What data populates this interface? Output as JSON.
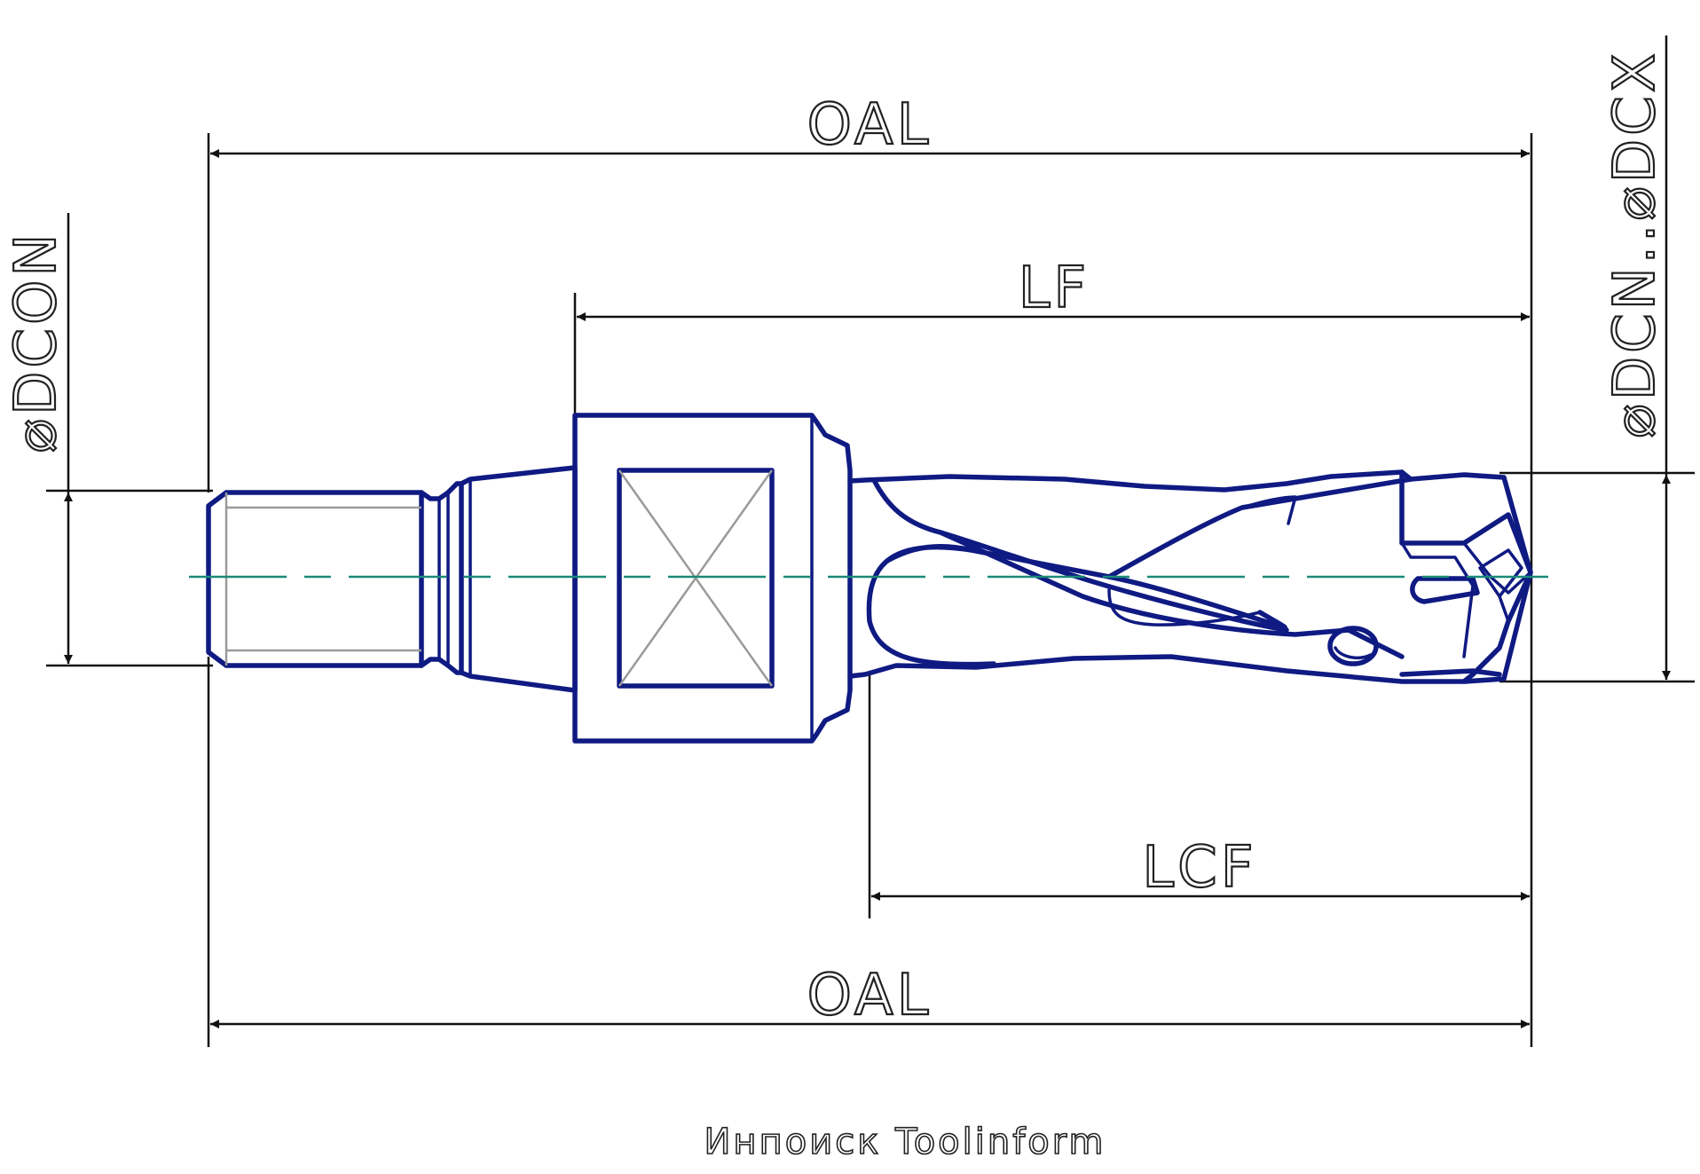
{
  "dimensions": {
    "oal_top": "OAL",
    "lf": "LF",
    "lcf": "LCF",
    "oal_bottom": "OAL",
    "dcon": "⌀DCON",
    "dcn_dcx": "⌀DCN..⌀DCX"
  },
  "footer": "Инпоиск Toolinform",
  "colors": {
    "tool_outline": "#0f1a82",
    "dimension_lines": "#111111",
    "center_axis": "#1a8a78",
    "thread_hidden": "#9a9a9a"
  }
}
